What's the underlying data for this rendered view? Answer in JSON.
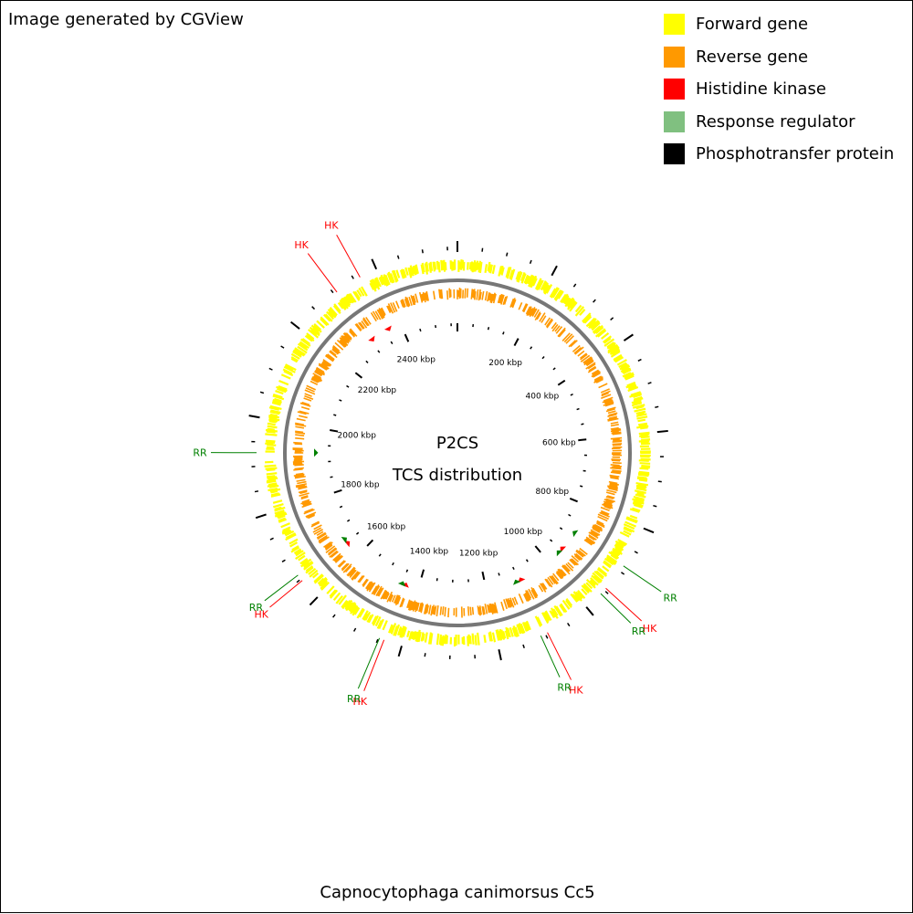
{
  "credit": "Image generated by CGView",
  "legend": [
    {
      "label": "Forward gene",
      "color": "#FFFF00"
    },
    {
      "label": "Reverse gene",
      "color": "#FF9900"
    },
    {
      "label": "Histidine kinase",
      "color": "#FF0000"
    },
    {
      "label": "Response regulator",
      "color": "#80C080"
    },
    {
      "label": "Phosphotransfer protein",
      "color": "#000000"
    }
  ],
  "center": {
    "line1": "P2CS",
    "line2": "TCS distribution"
  },
  "organism": "Capnocytophaga canimorsus Cc5",
  "genome": {
    "length_kbp": 2570,
    "tick_labels": [
      "200 kbp",
      "400 kbp",
      "600 kbp",
      "800 kbp",
      "1000 kbp",
      "1200 kbp",
      "1400 kbp",
      "1600 kbp",
      "1800 kbp",
      "2000 kbp",
      "2200 kbp",
      "2400 kbp"
    ],
    "tick_label_kbp": [
      200,
      400,
      600,
      800,
      1000,
      1200,
      1400,
      1600,
      1800,
      2000,
      2200,
      2400
    ]
  },
  "features": [
    {
      "label": "HK",
      "type": "Histidine kinase",
      "color": "#FF0000",
      "kbp": 2363
    },
    {
      "label": "HK",
      "type": "Histidine kinase",
      "color": "#FF0000",
      "kbp": 2307
    },
    {
      "label": "RR",
      "type": "Response regulator",
      "color": "#008000",
      "kbp": 1928
    },
    {
      "label": "RR",
      "type": "Response regulator",
      "color": "#008000",
      "kbp": 887
    },
    {
      "label": "HK",
      "type": "Histidine kinase",
      "color": "#FF0000",
      "kbp": 945
    },
    {
      "label": "RR",
      "type": "Response regulator",
      "color": "#008000",
      "kbp": 960
    },
    {
      "label": "HK",
      "type": "Histidine kinase",
      "color": "#FF0000",
      "kbp": 1095
    },
    {
      "label": "RR",
      "type": "Response regulator",
      "color": "#008000",
      "kbp": 1110
    },
    {
      "label": "HK",
      "type": "Histidine kinase",
      "color": "#FF0000",
      "kbp": 1438
    },
    {
      "label": "RR",
      "type": "Response regulator",
      "color": "#008000",
      "kbp": 1448
    },
    {
      "label": "HK",
      "type": "Histidine kinase",
      "color": "#FF0000",
      "kbp": 1646
    },
    {
      "label": "RR",
      "type": "Response regulator",
      "color": "#008000",
      "kbp": 1660
    }
  ]
}
